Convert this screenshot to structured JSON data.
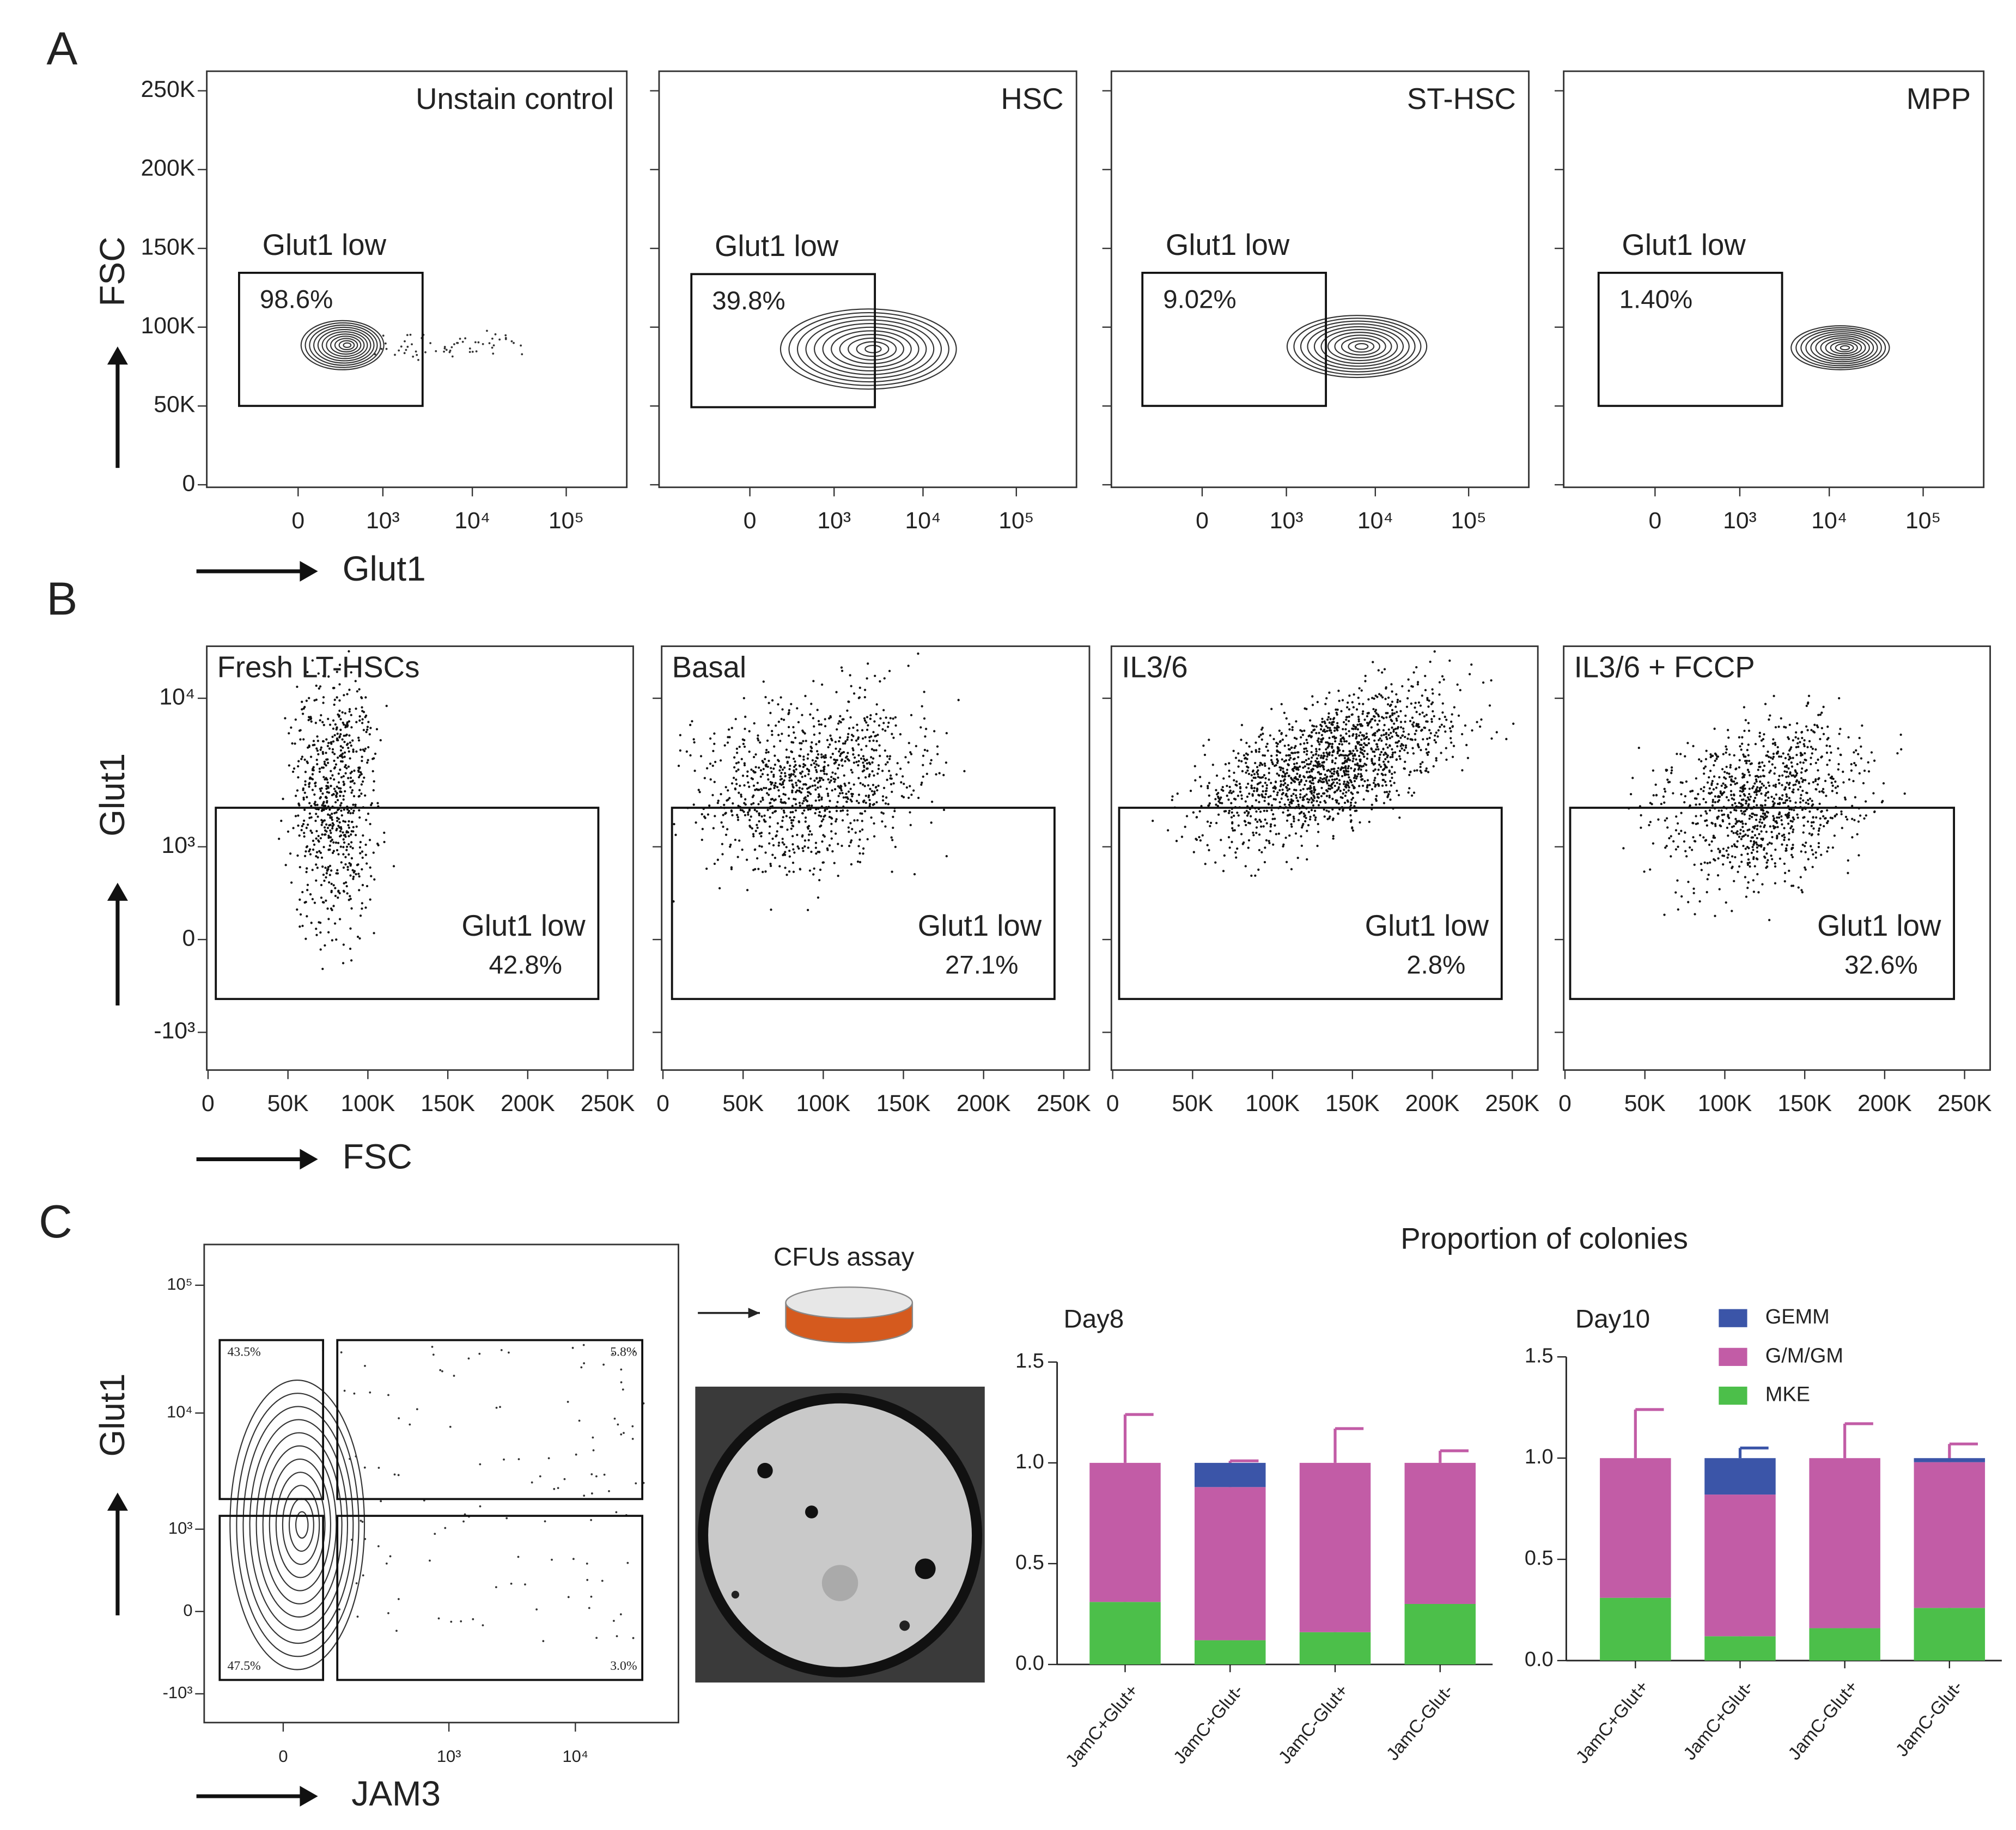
{
  "panel_labels": [
    "A",
    "B",
    "C"
  ],
  "cfu_label": "CFUs assay",
  "bar_group_title": "Proportion of colonies",
  "chart_data": [
    {
      "type": "flow",
      "title": "Unstain control",
      "ylabel": "FSC",
      "xlabel": "Glut1",
      "xscale": "symlog",
      "xlinthresh": 145,
      "xlim": [
        -1200,
        438000
      ],
      "xticks": [
        0,
        {
          "value": 1000,
          "label": "10³"
        },
        {
          "value": 10000,
          "label": "10⁴"
        },
        {
          "value": 100000,
          "label": "10⁵"
        }
      ],
      "ylim": [
        -1600,
        262400
      ],
      "yticks": [
        0,
        {
          "value": 50000,
          "label": "50K"
        },
        {
          "value": 100000,
          "label": "100K"
        },
        {
          "value": 150000,
          "label": "150K"
        },
        {
          "value": 200000,
          "label": "200K"
        },
        {
          "value": 250000,
          "label": "250K"
        }
      ],
      "gates": [
        {
          "label": "Glut1 low",
          "percent": "98.6%"
        }
      ]
    },
    {
      "type": "flow",
      "title": "HSC",
      "xscale": "symlog",
      "xlinthresh": 145,
      "xlim": [
        -1200,
        438000
      ],
      "xticks": [
        0,
        {
          "value": 1000,
          "label": "10³"
        },
        {
          "value": 10000,
          "label": "10⁴"
        },
        {
          "value": 100000,
          "label": "10⁵"
        }
      ],
      "gates": [
        {
          "label": "Glut1 low",
          "percent": "39.8%"
        }
      ]
    },
    {
      "type": "flow",
      "title": "ST-HSC",
      "xscale": "symlog",
      "xlinthresh": 145,
      "xlim": [
        -1200,
        438000
      ],
      "xticks": [
        0,
        {
          "value": 1000,
          "label": "10³"
        },
        {
          "value": 10000,
          "label": "10⁴"
        },
        {
          "value": 100000,
          "label": "10⁵"
        }
      ],
      "gates": [
        {
          "label": "Glut1 low",
          "percent": "9.02%"
        }
      ]
    },
    {
      "type": "flow",
      "title": "MPP",
      "xscale": "symlog",
      "xlinthresh": 145,
      "xlim": [
        -1200,
        438000
      ],
      "xticks": [
        0,
        {
          "value": 1000,
          "label": "10³"
        },
        {
          "value": 10000,
          "label": "10⁴"
        },
        {
          "value": 100000,
          "label": "10⁵"
        }
      ],
      "gates": [
        {
          "label": "Glut1 low",
          "percent": "1.40%"
        }
      ]
    },
    {
      "type": "flow",
      "title": "Fresh LT-HSCs",
      "ylabel": "Glut1",
      "xlabel": "FSC",
      "xlim": [
        -800,
        266000
      ],
      "xticks": [
        0,
        {
          "value": 50000,
          "label": "50K"
        },
        {
          "value": 100000,
          "label": "100K"
        },
        {
          "value": 150000,
          "label": "150K"
        },
        {
          "value": 200000,
          "label": "200K"
        },
        {
          "value": 250000,
          "label": "250K"
        }
      ],
      "yscale": "symlog",
      "ylinthresh": 400,
      "ylim": [
        -1930,
        20600
      ],
      "yticks": [
        {
          "value": -1000,
          "label": "-10³"
        },
        0,
        {
          "value": 1000,
          "label": "10³"
        },
        {
          "value": 10000,
          "label": "10⁴"
        }
      ],
      "gates": [
        {
          "label": "Glut1 low",
          "percent": "42.8%"
        }
      ]
    },
    {
      "type": "flow",
      "title": "Basal",
      "xlim": [
        -800,
        266000
      ],
      "xticks": [
        0,
        {
          "value": 50000,
          "label": "50K"
        },
        {
          "value": 100000,
          "label": "100K"
        },
        {
          "value": 150000,
          "label": "150K"
        },
        {
          "value": 200000,
          "label": "200K"
        },
        {
          "value": 250000,
          "label": "250K"
        }
      ],
      "gates": [
        {
          "label": "Glut1 low",
          "percent": "27.1%"
        }
      ]
    },
    {
      "type": "flow",
      "title": "IL3/6",
      "xlim": [
        -800,
        266000
      ],
      "xticks": [
        0,
        {
          "value": 50000,
          "label": "50K"
        },
        {
          "value": 100000,
          "label": "100K"
        },
        {
          "value": 150000,
          "label": "150K"
        },
        {
          "value": 200000,
          "label": "200K"
        },
        {
          "value": 250000,
          "label": "250K"
        }
      ],
      "gates": [
        {
          "label": "Glut1 low",
          "percent": "2.8%"
        }
      ]
    },
    {
      "type": "flow",
      "title": "IL3/6 + FCCP",
      "xlim": [
        -800,
        266000
      ],
      "xticks": [
        0,
        {
          "value": 50000,
          "label": "50K"
        },
        {
          "value": 100000,
          "label": "100K"
        },
        {
          "value": 150000,
          "label": "150K"
        },
        {
          "value": 200000,
          "label": "200K"
        },
        {
          "value": 250000,
          "label": "250K"
        }
      ],
      "gates": [
        {
          "label": "Glut1 low",
          "percent": "32.6%"
        }
      ]
    },
    {
      "type": "flow",
      "ylabel": "Glut1",
      "xlabel": "JAM3",
      "xscale": "symlog",
      "xlinthresh": 55,
      "xlim": [
        -170,
        63100
      ],
      "xticks": [
        0,
        {
          "value": 1000,
          "label": "10³"
        },
        {
          "value": 10000,
          "label": "10⁴"
        }
      ],
      "yscale": "symlog",
      "ylinthresh": 300,
      "ylim": [
        -1870,
        207000
      ],
      "yticks": [
        {
          "value": -1000,
          "label": "-10³"
        },
        0,
        {
          "value": 1000,
          "label": "10³"
        },
        {
          "value": 10000,
          "label": "10⁴"
        },
        {
          "value": 100000,
          "label": "10⁵"
        }
      ],
      "gates": [
        {
          "percent": "43.5%"
        },
        {
          "percent": "5.8%"
        },
        {
          "percent": "47.5%"
        },
        {
          "percent": "3.0%"
        }
      ]
    },
    {
      "type": "stacked_bar",
      "title": "Day8",
      "categories": [
        "JamC+Glut+",
        "JamC+Glut-",
        "JamC-Glut+",
        "JamC-Glut-"
      ],
      "ylim": [
        0,
        1.5
      ],
      "yticks": [
        {
          "value": 0,
          "label": "0.0"
        },
        0.5,
        {
          "value": 1,
          "label": "1.0"
        },
        1.5
      ],
      "series": [
        {
          "name": "GEMM",
          "color": "#3b55a8",
          "values": [
            0,
            0.12,
            0,
            0
          ]
        },
        {
          "name": "G/M/GM",
          "color": "#c25ca6",
          "values": [
            0.69,
            0.76,
            0.84,
            0.7
          ],
          "errors": [
            0.24,
            0.13,
            0.17,
            0.06
          ]
        },
        {
          "name": "MKE",
          "color": "#4cbf4a",
          "values": [
            0.31,
            0.12,
            0.16,
            0.3
          ],
          "errors": [
            0.24,
            0.13,
            0.17,
            0.07
          ]
        }
      ]
    },
    {
      "type": "stacked_bar",
      "title": "Day10",
      "legend": "upper right",
      "categories": [
        "JamC+Glut+",
        "JamC+Glut-",
        "JamC-Glut+",
        "JamC-Glut-"
      ],
      "ylim": [
        0,
        1.5
      ],
      "yticks": [
        {
          "value": 0,
          "label": "0.0"
        },
        0.5,
        {
          "value": 1,
          "label": "1.0"
        },
        1.5
      ],
      "series": [
        {
          "name": "GEMM",
          "color": "#3b55a8",
          "values": [
            0,
            0.18,
            0,
            0.02
          ],
          "errors": [
            null,
            0.05,
            null,
            null
          ]
        },
        {
          "name": "G/M/GM",
          "color": "#c25ca6",
          "values": [
            0.69,
            0.7,
            0.84,
            0.72
          ],
          "errors": [
            0.24,
            0.08,
            0.17,
            0.09
          ]
        },
        {
          "name": "MKE",
          "color": "#4cbf4a",
          "values": [
            0.31,
            0.12,
            0.16,
            0.26
          ],
          "errors": [
            0.24,
            0.13,
            0.17,
            0.11
          ]
        }
      ]
    }
  ]
}
